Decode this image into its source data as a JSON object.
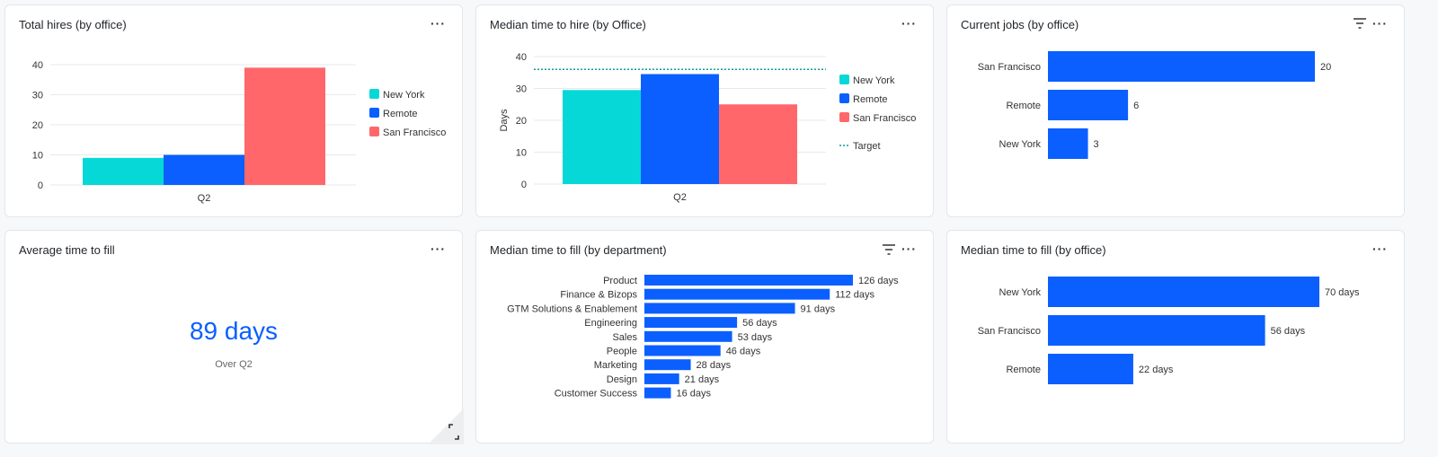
{
  "colors": {
    "new_york": "#06d8d8",
    "remote": "#0b5fff",
    "san_francisco": "#ff676b",
    "target": "#0f9d9a",
    "bar": "#0b5fff"
  },
  "panels": {
    "total_hires": {
      "title": "Total hires (by office)",
      "more_icon": "ellipsis-icon"
    },
    "median_time_to_hire": {
      "title": "Median time to hire (by Office)",
      "more_icon": "ellipsis-icon"
    },
    "current_jobs": {
      "title": "Current jobs (by office)",
      "more_icon": "ellipsis-icon",
      "filter_icon": "filter-icon"
    },
    "average_time_to_fill": {
      "title": "Average time to fill",
      "value": "89 days",
      "subtitle": "Over Q2",
      "more_icon": "ellipsis-icon",
      "expand_icon": "resize-icon"
    },
    "median_time_to_fill_dept": {
      "title": "Median time to fill (by department)",
      "more_icon": "ellipsis-icon",
      "filter_icon": "filter-icon"
    },
    "median_time_to_fill_office": {
      "title": "Median time to fill (by office)",
      "more_icon": "ellipsis-icon"
    }
  },
  "chart_data": [
    {
      "type": "bar",
      "title": "Total hires (by office)",
      "categories": [
        "Q2"
      ],
      "ylim": [
        0,
        40
      ],
      "yticks": [
        0,
        10,
        20,
        30,
        40
      ],
      "ylabel": "",
      "grid": true,
      "legend": "right",
      "series": [
        {
          "name": "New York",
          "values": [
            9
          ]
        },
        {
          "name": "Remote",
          "values": [
            10
          ]
        },
        {
          "name": "San Francisco",
          "values": [
            39
          ]
        }
      ]
    },
    {
      "type": "bar",
      "title": "Median time to hire (by Office)",
      "categories": [
        "Q2"
      ],
      "ylim": [
        0,
        40
      ],
      "yticks": [
        0,
        10,
        20,
        30,
        40
      ],
      "ylabel": "Days",
      "grid": true,
      "legend": "right",
      "series": [
        {
          "name": "New York",
          "values": [
            29.5
          ]
        },
        {
          "name": "Remote",
          "values": [
            34.5
          ]
        },
        {
          "name": "San Francisco",
          "values": [
            25
          ]
        }
      ],
      "reference_line": {
        "name": "Target",
        "value": 36
      }
    },
    {
      "type": "bar",
      "orientation": "horizontal",
      "title": "Current jobs (by office)",
      "categories": [
        "San Francisco",
        "Remote",
        "New York"
      ],
      "values": [
        20,
        6,
        3
      ],
      "labels": [
        "20",
        "6",
        "3"
      ]
    },
    {
      "type": "bar",
      "orientation": "horizontal",
      "title": "Median time to fill (by department)",
      "categories": [
        "Product",
        "Finance & Bizops",
        "GTM Solutions & Enablement",
        "Engineering",
        "Sales",
        "People",
        "Marketing",
        "Design",
        "Customer Success"
      ],
      "values": [
        126,
        112,
        91,
        56,
        53,
        46,
        28,
        21,
        16
      ],
      "labels": [
        "126 days",
        "112 days",
        "91 days",
        "56 days",
        "53 days",
        "46 days",
        "28 days",
        "21 days",
        "16 days"
      ]
    },
    {
      "type": "bar",
      "orientation": "horizontal",
      "title": "Median time to fill (by office)",
      "categories": [
        "New York",
        "San Francisco",
        "Remote"
      ],
      "values": [
        70,
        56,
        22
      ],
      "labels": [
        "70 days",
        "56 days",
        "22 days"
      ]
    }
  ]
}
